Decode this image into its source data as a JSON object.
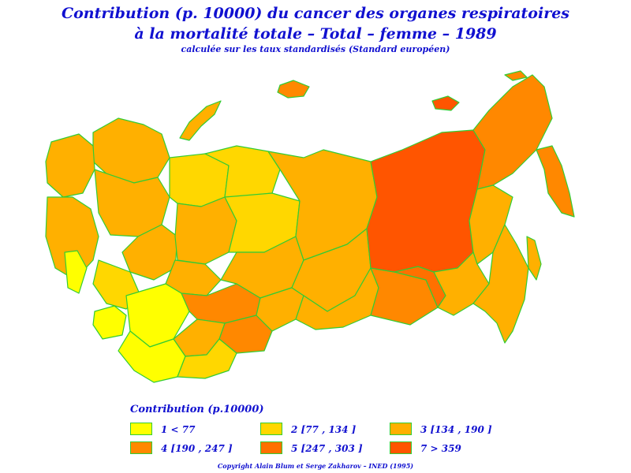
{
  "title": {
    "line1": "Contribution (p. 10000) du cancer des organes respiratoires",
    "line2": "à la mortalité totale  –  Total  –  femme  –  1989",
    "line3": "calculée sur les taux standardisés (Standard européen)"
  },
  "legend": {
    "title": "Contribution (p.10000)",
    "classes": [
      {
        "label": "1  <  77",
        "color": "#ffff00"
      },
      {
        "label": "2 [77 , 134 ]",
        "color": "#ffd700"
      },
      {
        "label": "3 [134 , 190 ]",
        "color": "#ffb000"
      },
      {
        "label": "4 [190 , 247 ]",
        "color": "#ff8800"
      },
      {
        "label": "5 [247 , 303 ]",
        "color": "#ff7000"
      },
      {
        "label": "7  >  359",
        "color": "#ff5500"
      }
    ]
  },
  "colors": {
    "border": "#33cc33",
    "text": "#1010d0"
  },
  "copyright": "Copyright Alain Blum et Serge Zakharov  –  INED (1995)"
}
